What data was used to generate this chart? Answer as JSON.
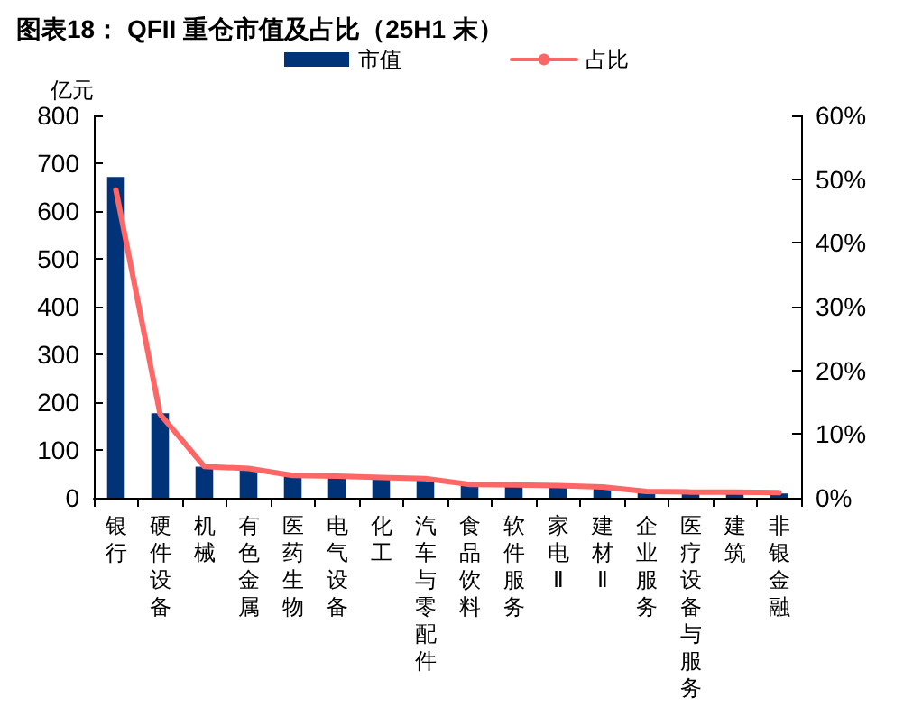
{
  "chart_data": {
    "type": "bar",
    "title": "图表18： QFII 重仓市值及占比（25H1 末）",
    "ylabel": "亿元",
    "categories": [
      "银行",
      "硬件设备",
      "机械",
      "有色金属",
      "医药生物",
      "电气设备",
      "化工",
      "汽车与零配件",
      "食品饮料",
      "软件服务",
      "家电Ⅱ",
      "建材Ⅱ",
      "企业服务",
      "医疗设备与服务",
      "建筑",
      "非银金融"
    ],
    "series": [
      {
        "name": "市值",
        "color": "#003378",
        "values": [
          671,
          177,
          65,
          59,
          46,
          43,
          42,
          39,
          28,
          26,
          23,
          20,
          12,
          9,
          8,
          9
        ]
      },
      {
        "name": "占比",
        "type": "line",
        "axis": "y2",
        "color": "#ff6666",
        "values": [
          48.3,
          13.1,
          4.9,
          4.6,
          3.5,
          3.4,
          3.2,
          3.0,
          2.1,
          2.0,
          1.9,
          1.7,
          1.0,
          0.9,
          0.9,
          0.8
        ]
      }
    ],
    "ylim": [
      0,
      800
    ],
    "yticks": [
      0,
      100,
      200,
      300,
      400,
      500,
      600,
      700,
      800
    ],
    "y2lim": [
      0,
      60
    ],
    "y2ticks": [
      {
        "value": 0,
        "label": "0%"
      },
      {
        "value": 10,
        "label": "10%"
      },
      {
        "value": 20,
        "label": "20%"
      },
      {
        "value": 30,
        "label": "30%"
      },
      {
        "value": 40,
        "label": "40%"
      },
      {
        "value": 50,
        "label": "50%"
      },
      {
        "value": 60,
        "label": "60%"
      }
    ],
    "legend": "top",
    "grid": false,
    "marker": "none",
    "line_style": "solid"
  }
}
